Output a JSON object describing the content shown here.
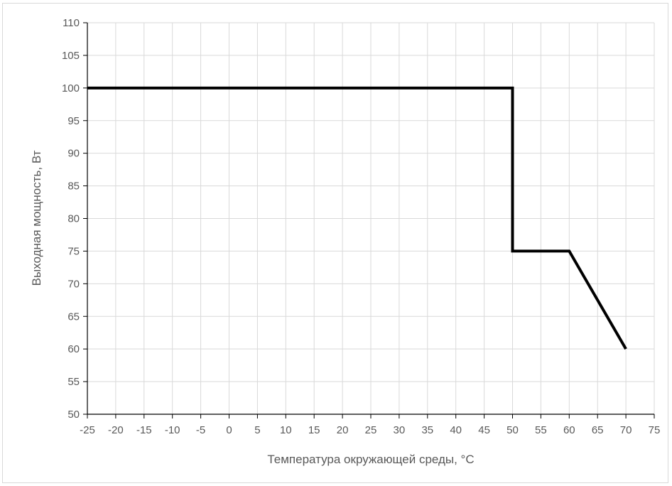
{
  "chart_data": {
    "type": "line",
    "title": "",
    "xlabel": "Температура окружающей среды, °C",
    "ylabel": "Выходная мощность, Вт",
    "xlim": [
      -25,
      75
    ],
    "ylim": [
      50,
      110
    ],
    "x_ticks": [
      "-25",
      "-20",
      "-15",
      "-10",
      "-5",
      "0",
      "5",
      "10",
      "15",
      "20",
      "25",
      "30",
      "35",
      "40",
      "45",
      "50",
      "55",
      "60",
      "65",
      "70",
      "75"
    ],
    "y_ticks": [
      "50",
      "55",
      "60",
      "65",
      "70",
      "75",
      "80",
      "85",
      "90",
      "95",
      "100",
      "105",
      "110"
    ],
    "grid": true,
    "legend": "none",
    "series": [
      {
        "color": "#000000",
        "points": [
          [
            -25,
            100
          ],
          [
            50,
            100
          ],
          [
            50,
            75
          ],
          [
            60,
            75
          ],
          [
            70,
            60
          ]
        ]
      }
    ]
  }
}
